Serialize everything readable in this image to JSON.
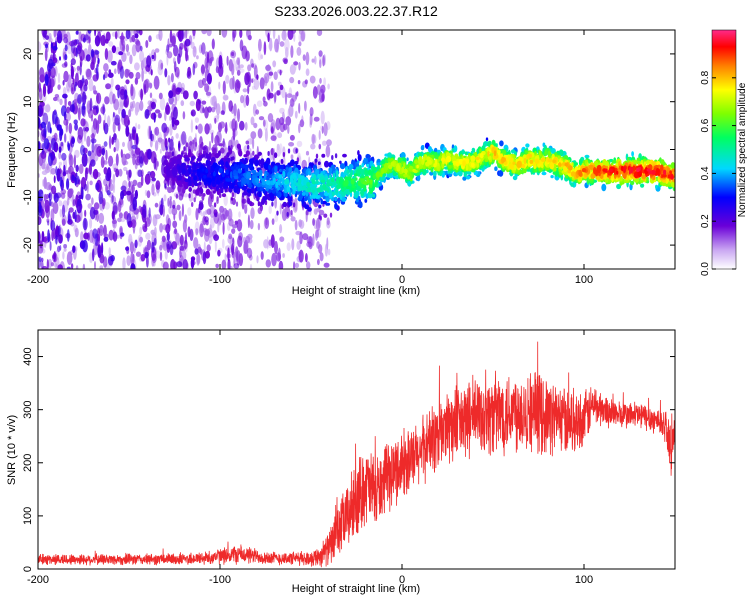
{
  "figure_title": "S233.2026.003.22.37.R12",
  "colors": {
    "snr_line": "#ee2a2a",
    "axis": "#000000",
    "background": "#ffffff"
  },
  "chart_data": [
    {
      "type": "heatmap",
      "title": "S233.2026.003.22.37.R12",
      "xlabel": "Height of straight line (km)",
      "ylabel": "Frequency (Hz)",
      "xlim": [
        -200,
        150
      ],
      "ylim": [
        -25,
        25
      ],
      "xticks": [
        -200,
        -100,
        0,
        100
      ],
      "xtick_labels": [
        "-200",
        "-100",
        "0",
        "100"
      ],
      "yticks": [
        -20,
        -10,
        0,
        10,
        20
      ],
      "ytick_labels": [
        "-20",
        "-10",
        "0",
        "10",
        "20"
      ],
      "ridge": {
        "description": "peak frequency track vs height",
        "x": [
          -130,
          -110,
          -100,
          -90,
          -80,
          -70,
          -60,
          -50,
          -40,
          -30,
          -20,
          -15,
          -10,
          -5,
          0,
          5,
          10,
          15,
          20,
          25,
          30,
          35,
          40,
          45,
          50,
          55,
          60,
          65,
          70,
          75,
          80,
          85,
          90,
          95,
          100,
          110,
          120,
          130,
          140,
          150
        ],
        "y": [
          -4,
          -5,
          -5,
          -5.5,
          -6,
          -6.5,
          -7,
          -7.5,
          -7.5,
          -7,
          -6.5,
          -6.5,
          -4,
          -3,
          -4,
          -5,
          -2.5,
          -2.5,
          -3,
          -2,
          -2.5,
          -3,
          -2.5,
          -1.5,
          -0.5,
          -2,
          -3,
          -3,
          -2,
          -2.5,
          -2,
          -3,
          -3.5,
          -5,
          -4.5,
          -4.5,
          -4.5,
          -4.5,
          -4.5,
          -5.5
        ],
        "peak_amplitude": [
          0.2,
          0.3,
          0.32,
          0.35,
          0.37,
          0.4,
          0.45,
          0.48,
          0.5,
          0.55,
          0.6,
          0.62,
          0.65,
          0.68,
          0.7,
          0.72,
          0.72,
          0.72,
          0.73,
          0.74,
          0.74,
          0.75,
          0.75,
          0.76,
          0.78,
          0.78,
          0.78,
          0.78,
          0.78,
          0.78,
          0.78,
          0.78,
          0.8,
          0.8,
          0.85,
          0.9,
          0.92,
          0.93,
          0.93,
          0.93
        ]
      },
      "noise_region": {
        "x_range": [
          -200,
          -40
        ],
        "y_range": [
          -25,
          25
        ]
      },
      "colorbar": {
        "label": "Normalized spectral amplitude",
        "range": [
          0,
          1
        ],
        "ticks": [
          0.0,
          0.2,
          0.4,
          0.6,
          0.8
        ],
        "tick_labels": [
          "0.0",
          "0.2",
          "0.4",
          "0.6",
          "0.8"
        ]
      }
    },
    {
      "type": "line",
      "xlabel": "Height of straight line (km)",
      "ylabel": "SNR (10 * v/v)",
      "xlim": [
        -200,
        150
      ],
      "ylim": [
        0,
        450
      ],
      "xticks": [
        -200,
        -100,
        0,
        100
      ],
      "xtick_labels": [
        "-200",
        "-100",
        "0",
        "100"
      ],
      "yticks": [
        0,
        100,
        200,
        300,
        400
      ],
      "ytick_labels": [
        "0",
        "100",
        "200",
        "300",
        "400"
      ],
      "series": [
        {
          "name": "SNR",
          "envelope_x": [
            -200,
            -180,
            -160,
            -140,
            -120,
            -110,
            -100,
            -90,
            -80,
            -70,
            -60,
            -50,
            -45,
            -40,
            -35,
            -30,
            -25,
            -20,
            -15,
            -10,
            -5,
            0,
            5,
            10,
            15,
            20,
            25,
            30,
            40,
            50,
            60,
            70,
            80,
            90,
            100,
            105,
            110,
            120,
            130,
            140,
            145,
            148,
            150
          ],
          "envelope_mean": [
            18,
            18,
            18,
            18,
            19,
            20,
            24,
            28,
            24,
            20,
            20,
            20,
            25,
            40,
            70,
            100,
            130,
            160,
            140,
            160,
            180,
            200,
            200,
            220,
            240,
            250,
            270,
            270,
            290,
            290,
            300,
            300,
            290,
            280,
            280,
            310,
            300,
            290,
            290,
            280,
            270,
            220,
            260
          ],
          "envelope_spread": [
            10,
            10,
            10,
            10,
            11,
            12,
            14,
            18,
            14,
            12,
            12,
            14,
            20,
            30,
            50,
            60,
            70,
            70,
            70,
            60,
            60,
            60,
            60,
            60,
            60,
            70,
            70,
            70,
            70,
            75,
            75,
            75,
            70,
            60,
            50,
            40,
            30,
            25,
            25,
            25,
            30,
            40,
            30
          ]
        }
      ]
    }
  ]
}
